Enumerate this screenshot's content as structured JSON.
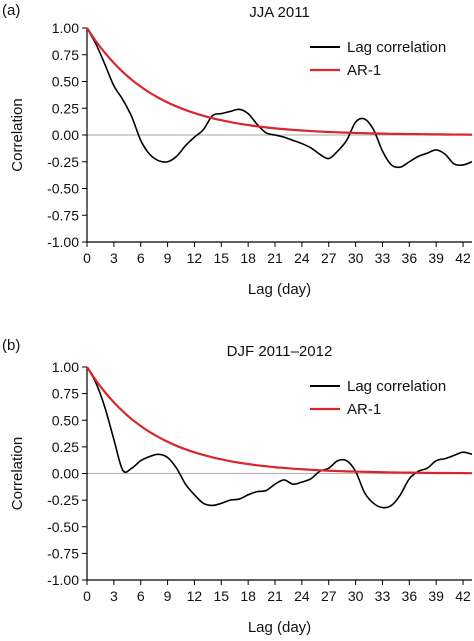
{
  "chart_data": [
    {
      "type": "line",
      "panel_label": "(a)",
      "title": "JJA 2011",
      "xlabel": "Lag (day)",
      "ylabel": "Correlation",
      "xlim": [
        0,
        43
      ],
      "ylim": [
        -1.0,
        1.0
      ],
      "x_ticks": [
        0,
        3,
        6,
        9,
        12,
        15,
        18,
        21,
        24,
        27,
        30,
        33,
        36,
        39,
        42
      ],
      "y_ticks": [
        "1.00",
        "0.75",
        "0.50",
        "0.25",
        "0.00",
        "-0.25",
        "-0.50",
        "-0.75",
        "-1.00"
      ],
      "zero_line": true,
      "legend": "top-right",
      "series": [
        {
          "name": "Lag correlation",
          "color": "#000000",
          "x": [
            0,
            1,
            2,
            3,
            4,
            5,
            6,
            7,
            8,
            9,
            10,
            11,
            12,
            13,
            14,
            15,
            16,
            17,
            18,
            19,
            20,
            21,
            22,
            23,
            24,
            25,
            26,
            27,
            28,
            29,
            30,
            31,
            32,
            33,
            34,
            35,
            36,
            37,
            38,
            39,
            40,
            41,
            42,
            43
          ],
          "y": [
            1.0,
            0.85,
            0.66,
            0.46,
            0.33,
            0.17,
            -0.05,
            -0.18,
            -0.24,
            -0.25,
            -0.2,
            -0.1,
            -0.02,
            0.05,
            0.18,
            0.2,
            0.22,
            0.24,
            0.2,
            0.1,
            0.02,
            0.0,
            -0.02,
            -0.05,
            -0.08,
            -0.12,
            -0.18,
            -0.22,
            -0.15,
            -0.05,
            0.12,
            0.15,
            0.05,
            -0.15,
            -0.28,
            -0.3,
            -0.25,
            -0.2,
            -0.17,
            -0.14,
            -0.18,
            -0.27,
            -0.28,
            -0.25
          ]
        },
        {
          "name": "AR-1",
          "color": "#d9262c",
          "x": [
            0,
            1,
            2,
            3,
            4,
            5,
            6,
            7,
            8,
            9,
            10,
            11,
            12,
            13,
            14,
            15,
            16,
            17,
            18,
            19,
            20,
            21,
            22,
            23,
            24,
            25,
            26,
            27,
            28,
            29,
            30,
            31,
            32,
            33,
            34,
            35,
            36,
            37,
            38,
            39,
            40,
            41,
            42,
            43
          ],
          "y": [
            1.0,
            0.876,
            0.768,
            0.673,
            0.589,
            0.516,
            0.452,
            0.396,
            0.347,
            0.304,
            0.267,
            0.234,
            0.205,
            0.179,
            0.157,
            0.138,
            0.121,
            0.106,
            0.093,
            0.081,
            0.071,
            0.062,
            0.055,
            0.048,
            0.042,
            0.037,
            0.032,
            0.028,
            0.025,
            0.022,
            0.019,
            0.017,
            0.015,
            0.013,
            0.011,
            0.01,
            0.009,
            0.008,
            0.007,
            0.006,
            0.005,
            0.004,
            0.004,
            0.003
          ]
        }
      ]
    },
    {
      "type": "line",
      "panel_label": "(b)",
      "title": "DJF 2011–2012",
      "xlabel": "Lag (day)",
      "ylabel": "Correlation",
      "xlim": [
        0,
        43
      ],
      "ylim": [
        -1.0,
        1.0
      ],
      "x_ticks": [
        0,
        3,
        6,
        9,
        12,
        15,
        18,
        21,
        24,
        27,
        30,
        33,
        36,
        39,
        42
      ],
      "y_ticks": [
        "1.00",
        "0.75",
        "0.50",
        "0.25",
        "0.00",
        "-0.25",
        "-0.50",
        "-0.75",
        "-1.00"
      ],
      "zero_line": true,
      "legend": "top-right",
      "series": [
        {
          "name": "Lag correlation",
          "color": "#000000",
          "x": [
            0,
            1,
            2,
            3,
            4,
            5,
            6,
            7,
            8,
            9,
            10,
            11,
            12,
            13,
            14,
            15,
            16,
            17,
            18,
            19,
            20,
            21,
            22,
            23,
            24,
            25,
            26,
            27,
            28,
            29,
            30,
            31,
            32,
            33,
            34,
            35,
            36,
            37,
            38,
            39,
            40,
            41,
            42,
            43
          ],
          "y": [
            1.0,
            0.85,
            0.62,
            0.32,
            0.03,
            0.05,
            0.12,
            0.16,
            0.18,
            0.15,
            0.05,
            -0.1,
            -0.2,
            -0.28,
            -0.3,
            -0.28,
            -0.25,
            -0.24,
            -0.2,
            -0.17,
            -0.16,
            -0.1,
            -0.06,
            -0.1,
            -0.08,
            -0.05,
            0.02,
            0.05,
            0.12,
            0.12,
            0.02,
            -0.18,
            -0.28,
            -0.32,
            -0.3,
            -0.2,
            -0.05,
            0.02,
            0.05,
            0.12,
            0.14,
            0.17,
            0.2,
            0.18
          ]
        },
        {
          "name": "AR-1",
          "color": "#d9262c",
          "x": [
            0,
            1,
            2,
            3,
            4,
            5,
            6,
            7,
            8,
            9,
            10,
            11,
            12,
            13,
            14,
            15,
            16,
            17,
            18,
            19,
            20,
            21,
            22,
            23,
            24,
            25,
            26,
            27,
            28,
            29,
            30,
            31,
            32,
            33,
            34,
            35,
            36,
            37,
            38,
            39,
            40,
            41,
            42,
            43
          ],
          "y": [
            1.0,
            0.874,
            0.764,
            0.668,
            0.584,
            0.51,
            0.446,
            0.39,
            0.341,
            0.298,
            0.26,
            0.227,
            0.199,
            0.174,
            0.152,
            0.133,
            0.116,
            0.101,
            0.089,
            0.077,
            0.068,
            0.059,
            0.052,
            0.045,
            0.04,
            0.035,
            0.03,
            0.026,
            0.023,
            0.02,
            0.018,
            0.016,
            0.014,
            0.012,
            0.01,
            0.009,
            0.008,
            0.007,
            0.006,
            0.005,
            0.005,
            0.004,
            0.004,
            0.003
          ]
        }
      ]
    }
  ]
}
